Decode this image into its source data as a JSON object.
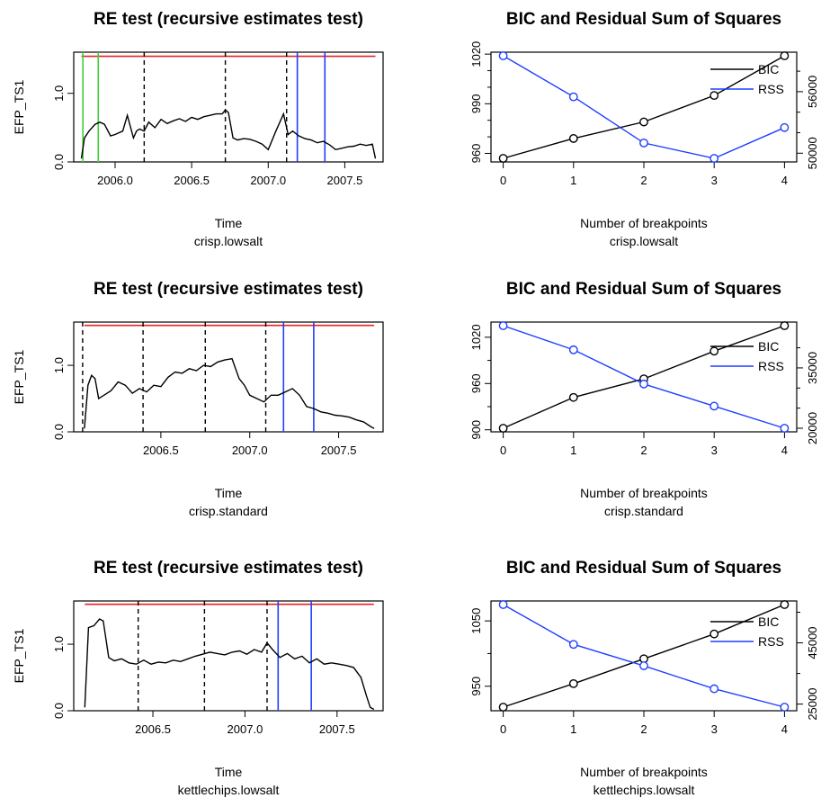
{
  "chart_data": [
    {
      "type": "line",
      "title": "RE test (recursive estimates test)",
      "xlabel": "Time",
      "subtitle": "crisp.lowsalt",
      "ylabel": "EFP_TS1",
      "xlim": [
        2005.73,
        2007.75
      ],
      "ylim": [
        0,
        1.6
      ],
      "xticks": [
        2006.0,
        2006.5,
        2007.0,
        2007.5
      ],
      "xtick_labels": [
        "2006.0",
        "2006.5",
        "2007.0",
        "2007.5"
      ],
      "yticks": [
        0.0,
        1.0
      ],
      "ytick_labels": [
        "0.0",
        "1.0"
      ],
      "critical_value": 1.54,
      "series": [
        {
          "x": [
            2005.78,
            2005.8,
            2005.83,
            2005.87,
            2005.9,
            2005.93,
            2005.97,
            2006.0,
            2006.05,
            2006.08,
            2006.12,
            2006.14,
            2006.16,
            2006.19,
            2006.22,
            2006.26,
            2006.3,
            2006.34,
            2006.38,
            2006.42,
            2006.46,
            2006.5,
            2006.54,
            2006.58,
            2006.62,
            2006.66,
            2006.7,
            2006.72,
            2006.74,
            2006.77,
            2006.8,
            2006.84,
            2006.88,
            2006.92,
            2006.96,
            2007.0,
            2007.05,
            2007.1,
            2007.13,
            2007.16,
            2007.2,
            2007.24,
            2007.28,
            2007.32,
            2007.36,
            2007.4,
            2007.44,
            2007.48,
            2007.52,
            2007.56,
            2007.6,
            2007.64,
            2007.68,
            2007.7
          ],
          "y": [
            0.05,
            0.35,
            0.45,
            0.55,
            0.58,
            0.55,
            0.38,
            0.4,
            0.45,
            0.68,
            0.35,
            0.45,
            0.48,
            0.45,
            0.58,
            0.5,
            0.62,
            0.56,
            0.6,
            0.63,
            0.59,
            0.65,
            0.62,
            0.66,
            0.68,
            0.7,
            0.7,
            0.76,
            0.72,
            0.35,
            0.32,
            0.34,
            0.33,
            0.3,
            0.26,
            0.18,
            0.45,
            0.7,
            0.4,
            0.45,
            0.38,
            0.34,
            0.32,
            0.28,
            0.3,
            0.25,
            0.18,
            0.2,
            0.22,
            0.23,
            0.26,
            0.24,
            0.26,
            0.05
          ]
        }
      ],
      "green_lines": [
        2005.79,
        2005.89
      ],
      "black_dashed_lines": [
        2006.19,
        2006.72,
        2007.12
      ],
      "blue_lines": [
        2007.19,
        2007.37
      ]
    },
    {
      "type": "line",
      "title": "BIC and Residual Sum of Squares",
      "xlabel": "Number of breakpoints",
      "subtitle": "crisp.lowsalt",
      "xlim": [
        0,
        4
      ],
      "x": [
        0,
        1,
        2,
        3,
        4
      ],
      "xticks": [
        0,
        1,
        2,
        3,
        4
      ],
      "xtick_labels": [
        "0",
        "1",
        "2",
        "3",
        "4"
      ],
      "left_ylim": [
        957,
        1019
      ],
      "left_yticks": [
        960,
        990,
        1020
      ],
      "left_ytick_labels": [
        "960",
        "990",
        "1020"
      ],
      "right_ylim": [
        49500,
        59500
      ],
      "right_yticks": [
        50000,
        56000
      ],
      "right_ytick_labels": [
        "50000",
        "56000"
      ],
      "minor_ticks_left": [
        970,
        980,
        1000,
        1010
      ],
      "minor_ticks_right": [
        52000,
        54000,
        58000
      ],
      "legend_position": "top-right",
      "series": [
        {
          "name": "BIC",
          "axis": "left",
          "color": "#000000",
          "values": [
            957,
            969,
            979,
            995,
            1019
          ]
        },
        {
          "name": "RSS",
          "axis": "right",
          "color": "#1f3fff",
          "values": [
            59500,
            55500,
            51000,
            49500,
            52500
          ]
        }
      ]
    },
    {
      "type": "line",
      "title": "RE test (recursive estimates test)",
      "xlabel": "Time",
      "subtitle": "crisp.standard",
      "ylabel": "EFP_TS1",
      "xlim": [
        2006.01,
        2007.75
      ],
      "ylim": [
        0,
        1.65
      ],
      "xticks": [
        2006.5,
        2007.0,
        2007.5
      ],
      "xtick_labels": [
        "2006.5",
        "2007.0",
        "2007.5"
      ],
      "yticks": [
        0.0,
        1.0
      ],
      "ytick_labels": [
        "0.0",
        "1.0"
      ],
      "critical_value": 1.6,
      "series": [
        {
          "x": [
            2006.07,
            2006.09,
            2006.11,
            2006.13,
            2006.15,
            2006.18,
            2006.22,
            2006.26,
            2006.3,
            2006.34,
            2006.38,
            2006.42,
            2006.46,
            2006.5,
            2006.54,
            2006.58,
            2006.62,
            2006.66,
            2006.7,
            2006.74,
            2006.78,
            2006.82,
            2006.86,
            2006.9,
            2006.94,
            2006.97,
            2007.0,
            2007.04,
            2007.08,
            2007.12,
            2007.16,
            2007.2,
            2007.24,
            2007.28,
            2007.32,
            2007.36,
            2007.4,
            2007.44,
            2007.48,
            2007.52,
            2007.56,
            2007.6,
            2007.64,
            2007.68,
            2007.7
          ],
          "y": [
            0.05,
            0.7,
            0.85,
            0.8,
            0.5,
            0.55,
            0.62,
            0.75,
            0.7,
            0.58,
            0.65,
            0.6,
            0.7,
            0.68,
            0.82,
            0.9,
            0.88,
            0.95,
            0.92,
            1.0,
            0.98,
            1.05,
            1.08,
            1.1,
            0.8,
            0.7,
            0.55,
            0.5,
            0.45,
            0.55,
            0.55,
            0.6,
            0.65,
            0.55,
            0.38,
            0.35,
            0.3,
            0.28,
            0.25,
            0.24,
            0.22,
            0.18,
            0.15,
            0.08,
            0.05
          ]
        }
      ],
      "black_dashed_lines": [
        2006.06,
        2006.4,
        2006.75,
        2007.09
      ],
      "blue_lines": [
        2007.19,
        2007.36
      ]
    },
    {
      "type": "line",
      "title": "BIC and Residual Sum of Squares",
      "xlabel": "Number of breakpoints",
      "subtitle": "crisp.standard",
      "xlim": [
        0,
        4
      ],
      "x": [
        0,
        1,
        2,
        3,
        4
      ],
      "xticks": [
        0,
        1,
        2,
        3,
        4
      ],
      "xtick_labels": [
        "0",
        "1",
        "2",
        "3",
        "4"
      ],
      "left_ylim": [
        902,
        1035
      ],
      "left_yticks": [
        900,
        960,
        1020
      ],
      "left_ytick_labels": [
        "900",
        "960",
        "1020"
      ],
      "right_ylim": [
        20000,
        45500
      ],
      "right_yticks": [
        20000,
        35000
      ],
      "right_ytick_labels": [
        "20000",
        "35000"
      ],
      "minor_ticks_left": [
        930,
        990
      ],
      "minor_ticks_right": [
        25000,
        30000,
        40000
      ],
      "legend_position": "top-right",
      "series": [
        {
          "name": "BIC",
          "axis": "left",
          "color": "#000000",
          "values": [
            902,
            942,
            966,
            1002,
            1035
          ]
        },
        {
          "name": "RSS",
          "axis": "right",
          "color": "#1f3fff",
          "values": [
            45500,
            39500,
            31000,
            25500,
            20000
          ]
        }
      ]
    },
    {
      "type": "line",
      "title": "RE test (recursive estimates test)",
      "xlabel": "Time",
      "subtitle": "kettlechips.lowsalt",
      "ylabel": "EFP_TS1",
      "xlim": [
        2006.07,
        2007.75
      ],
      "ylim": [
        0,
        1.65
      ],
      "xticks": [
        2006.5,
        2007.0,
        2007.5
      ],
      "xtick_labels": [
        "2006.5",
        "2007.0",
        "2007.5"
      ],
      "yticks": [
        0.0,
        1.0
      ],
      "ytick_labels": [
        "0.0",
        "1.0"
      ],
      "critical_value": 1.6,
      "series": [
        {
          "x": [
            2006.13,
            2006.15,
            2006.18,
            2006.21,
            2006.23,
            2006.26,
            2006.29,
            2006.33,
            2006.37,
            2006.41,
            2006.45,
            2006.49,
            2006.53,
            2006.57,
            2006.61,
            2006.65,
            2006.69,
            2006.73,
            2006.77,
            2006.81,
            2006.85,
            2006.89,
            2006.93,
            2006.97,
            2007.01,
            2007.05,
            2007.09,
            2007.12,
            2007.15,
            2007.19,
            2007.23,
            2007.27,
            2007.31,
            2007.35,
            2007.39,
            2007.43,
            2007.47,
            2007.51,
            2007.55,
            2007.59,
            2007.63,
            2007.66,
            2007.68,
            2007.7
          ],
          "y": [
            0.05,
            1.25,
            1.28,
            1.38,
            1.35,
            0.8,
            0.75,
            0.78,
            0.72,
            0.7,
            0.76,
            0.7,
            0.73,
            0.72,
            0.76,
            0.74,
            0.78,
            0.82,
            0.85,
            0.88,
            0.86,
            0.84,
            0.88,
            0.9,
            0.85,
            0.92,
            0.88,
            1.02,
            0.92,
            0.8,
            0.86,
            0.78,
            0.82,
            0.72,
            0.78,
            0.7,
            0.72,
            0.7,
            0.68,
            0.65,
            0.5,
            0.22,
            0.05,
            0.02
          ]
        }
      ],
      "black_dashed_lines": [
        2006.42,
        2006.78,
        2007.12
      ],
      "blue_lines": [
        2007.18,
        2007.36
      ]
    },
    {
      "type": "line",
      "title": "BIC and Residual Sum of Squares",
      "xlabel": "Number of breakpoints",
      "subtitle": "kettlechips.lowsalt",
      "xlim": [
        0,
        4
      ],
      "x": [
        0,
        1,
        2,
        3,
        4
      ],
      "xticks": [
        0,
        1,
        2,
        3,
        4
      ],
      "xtick_labels": [
        "0",
        "1",
        "2",
        "3",
        "4"
      ],
      "left_ylim": [
        918,
        1075
      ],
      "left_yticks": [
        950,
        1050
      ],
      "left_ytick_labels": [
        "950",
        "1050"
      ],
      "right_ylim": [
        24000,
        57500
      ],
      "right_yticks": [
        25000,
        45000
      ],
      "right_ytick_labels": [
        "25000",
        "45000"
      ],
      "minor_ticks_left": [
        1000
      ],
      "minor_ticks_right": [
        35000,
        55000
      ],
      "legend_position": "top-right",
      "series": [
        {
          "name": "BIC",
          "axis": "left",
          "color": "#000000",
          "values": [
            918,
            954,
            992,
            1030,
            1075
          ]
        },
        {
          "name": "RSS",
          "axis": "right",
          "color": "#1f3fff",
          "values": [
            57500,
            44500,
            37500,
            30000,
            24000
          ]
        }
      ]
    }
  ]
}
